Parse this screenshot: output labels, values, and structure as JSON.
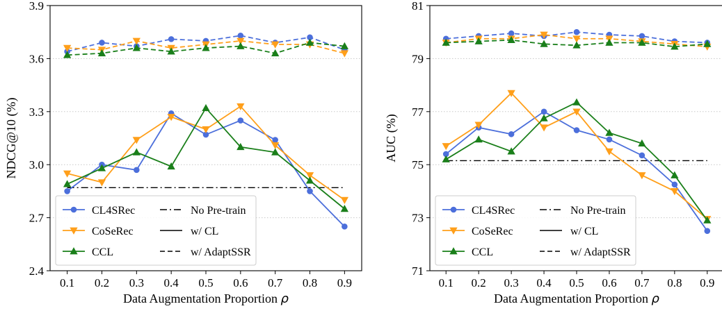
{
  "colors": {
    "CL4SRec": "#4c6fdb",
    "CoSeRec": "#ff9f1a",
    "CCL": "#1a7f1a",
    "baseline": "#000000",
    "grid": "#c8c8c8"
  },
  "legend": {
    "series": [
      {
        "label": "CL4SRec",
        "color": "#4c6fdb",
        "marker": "circle"
      },
      {
        "label": "CoSeRec",
        "color": "#ff9f1a",
        "marker": "triangle-down"
      },
      {
        "label": "CCL",
        "color": "#1a7f1a",
        "marker": "triangle-up"
      }
    ],
    "styles": [
      {
        "label": "No Pre-train",
        "dash": "dashdot"
      },
      {
        "label": "w/ CL",
        "dash": "solid"
      },
      {
        "label": "w/ AdaptSSR",
        "dash": "dashed"
      }
    ],
    "placement": "lower-left"
  },
  "chart_data": [
    {
      "type": "line",
      "xlabel": "Data Augmentation Proportion",
      "xlabel_symbol": "ρ",
      "ylabel": "NDCG@10 (%)",
      "x": [
        0.1,
        0.2,
        0.3,
        0.4,
        0.5,
        0.6,
        0.7,
        0.8,
        0.9
      ],
      "x_ticks": [
        "0.1",
        "0.2",
        "0.3",
        "0.4",
        "0.5",
        "0.6",
        "0.7",
        "0.8",
        "0.9"
      ],
      "ylim": [
        2.4,
        3.9
      ],
      "y_ticks": [
        "2.4",
        "2.7",
        "3.0",
        "3.3",
        "3.6",
        "3.9"
      ],
      "grid": "horizontal dotted",
      "no_pretrain": 2.87,
      "series": [
        {
          "name": "CL4SRec",
          "style": "solid",
          "values": [
            2.85,
            3.0,
            2.97,
            3.29,
            3.17,
            3.25,
            3.14,
            2.85,
            2.65
          ]
        },
        {
          "name": "CoSeRec",
          "style": "solid",
          "values": [
            2.95,
            2.9,
            3.14,
            3.27,
            3.2,
            3.33,
            3.11,
            2.94,
            2.8
          ]
        },
        {
          "name": "CCL",
          "style": "solid",
          "values": [
            2.89,
            2.98,
            3.07,
            2.99,
            3.32,
            3.1,
            3.07,
            2.91,
            2.75
          ]
        },
        {
          "name": "CL4SRec",
          "style": "dashed",
          "values": [
            3.64,
            3.69,
            3.67,
            3.71,
            3.7,
            3.73,
            3.69,
            3.72,
            3.65
          ]
        },
        {
          "name": "CoSeRec",
          "style": "dashed",
          "values": [
            3.66,
            3.65,
            3.7,
            3.66,
            3.68,
            3.7,
            3.68,
            3.68,
            3.63
          ]
        },
        {
          "name": "CCL",
          "style": "dashed",
          "values": [
            3.62,
            3.63,
            3.66,
            3.64,
            3.66,
            3.67,
            3.63,
            3.69,
            3.67
          ]
        }
      ]
    },
    {
      "type": "line",
      "xlabel": "Data Augmentation Proportion",
      "xlabel_symbol": "ρ",
      "ylabel": "AUC (%)",
      "x": [
        0.1,
        0.2,
        0.3,
        0.4,
        0.5,
        0.6,
        0.7,
        0.8,
        0.9
      ],
      "x_ticks": [
        "0.1",
        "0.2",
        "0.3",
        "0.4",
        "0.5",
        "0.6",
        "0.7",
        "0.8",
        "0.9"
      ],
      "ylim": [
        71,
        81
      ],
      "y_ticks": [
        "71",
        "73",
        "75",
        "77",
        "79",
        "81"
      ],
      "grid": "horizontal dotted",
      "no_pretrain": 75.15,
      "series": [
        {
          "name": "CL4SRec",
          "style": "solid",
          "values": [
            75.4,
            76.4,
            76.15,
            77.0,
            76.3,
            75.95,
            75.35,
            74.25,
            72.5
          ]
        },
        {
          "name": "CoSeRec",
          "style": "solid",
          "values": [
            75.7,
            76.5,
            77.7,
            76.4,
            77.0,
            75.5,
            74.6,
            74.0,
            72.95
          ]
        },
        {
          "name": "CCL",
          "style": "solid",
          "values": [
            75.2,
            75.95,
            75.5,
            76.75,
            77.35,
            76.2,
            75.8,
            74.6,
            72.9
          ]
        },
        {
          "name": "CL4SRec",
          "style": "dashed",
          "values": [
            79.75,
            79.85,
            79.95,
            79.85,
            80.0,
            79.9,
            79.85,
            79.65,
            79.6
          ]
        },
        {
          "name": "CoSeRec",
          "style": "dashed",
          "values": [
            79.6,
            79.75,
            79.75,
            79.9,
            79.75,
            79.75,
            79.65,
            79.55,
            79.45
          ]
        },
        {
          "name": "CCL",
          "style": "dashed",
          "values": [
            79.6,
            79.65,
            79.7,
            79.55,
            79.5,
            79.6,
            79.6,
            79.45,
            79.55
          ]
        }
      ]
    }
  ]
}
